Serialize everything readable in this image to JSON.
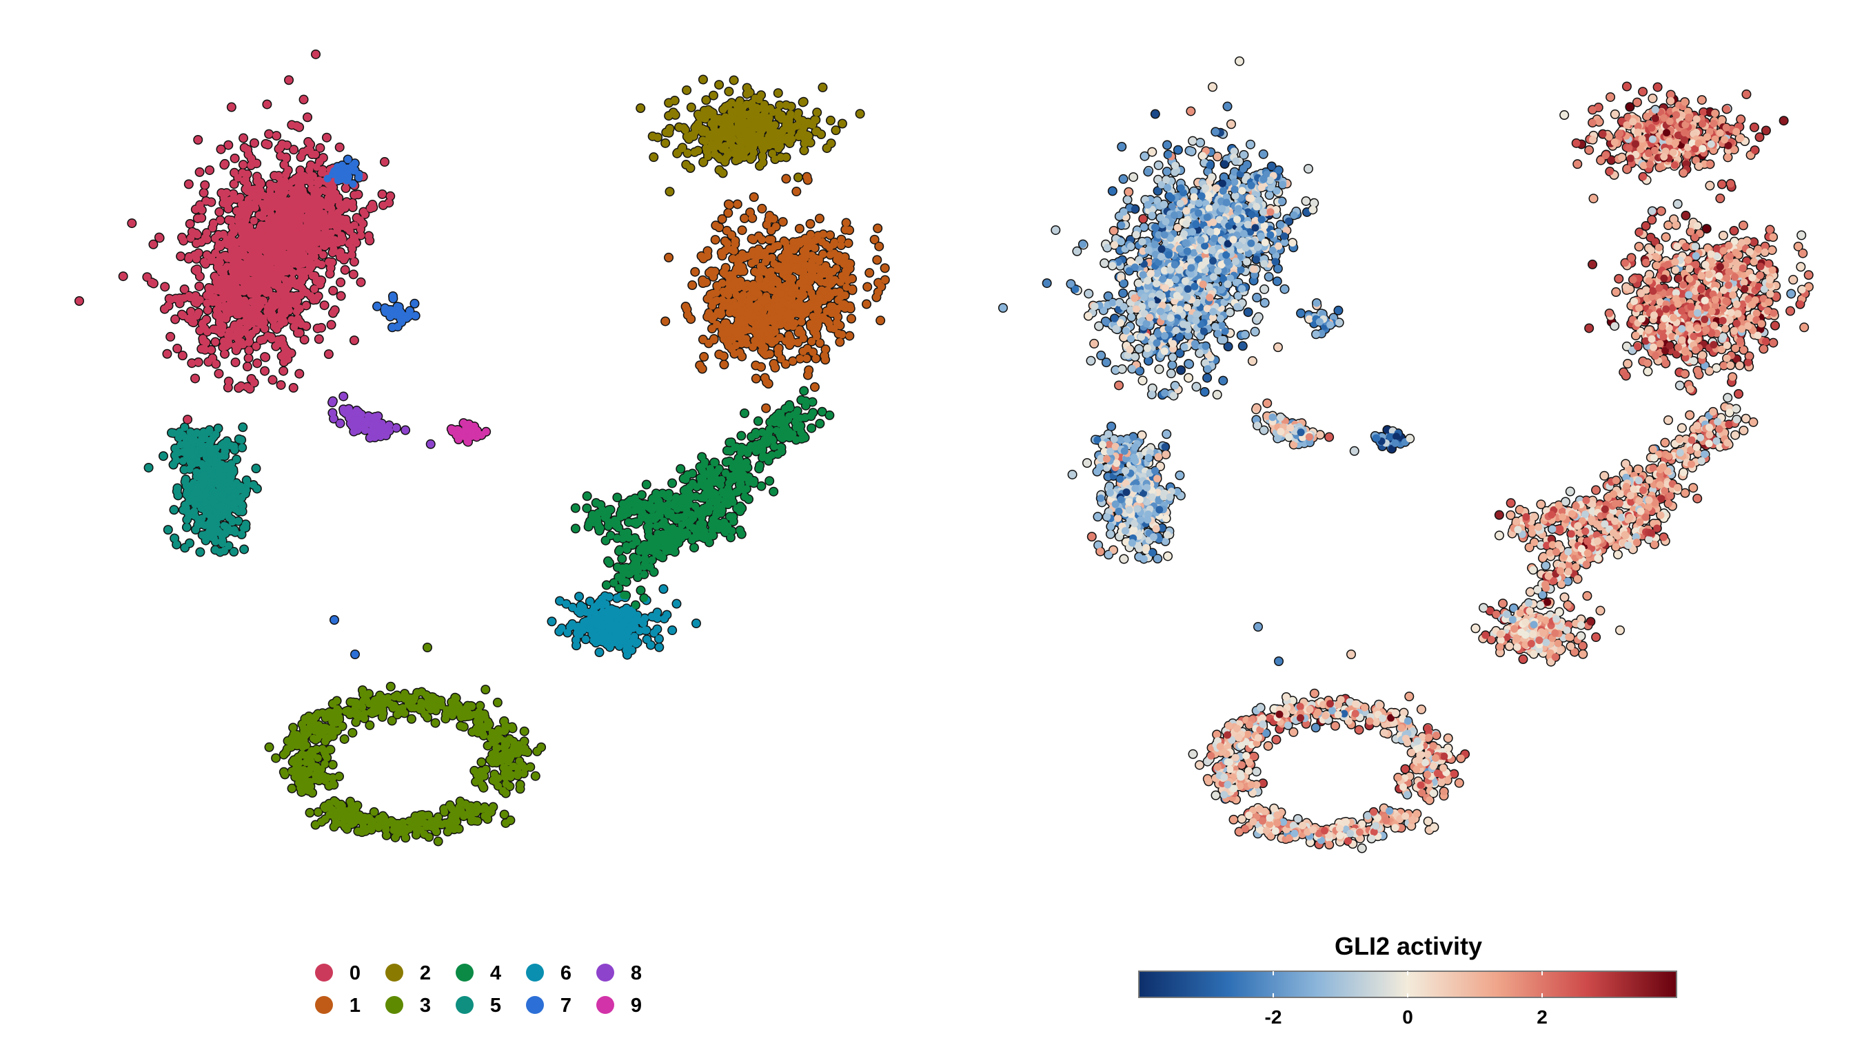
{
  "chart_data": [
    {
      "type": "scatter",
      "panel": "cluster-umap",
      "title": "",
      "xlabel": "",
      "ylabel": "",
      "legend": {
        "placement": "bottom",
        "entries": [
          {
            "label": "0",
            "color": "#CC3A5B"
          },
          {
            "label": "1",
            "color": "#BF5B17"
          },
          {
            "label": "2",
            "color": "#8A7A00"
          },
          {
            "label": "3",
            "color": "#5E8A00"
          },
          {
            "label": "4",
            "color": "#0B8A45"
          },
          {
            "label": "5",
            "color": "#0E8F80"
          },
          {
            "label": "6",
            "color": "#0A8FB0"
          },
          {
            "label": "7",
            "color": "#2C6FD6"
          },
          {
            "label": "8",
            "color": "#8E43CC"
          },
          {
            "label": "9",
            "color": "#D233A8"
          }
        ]
      },
      "axes_visible": false,
      "grid": false
    },
    {
      "type": "scatter",
      "panel": "gli2-activity-umap",
      "title": "",
      "colorbar": {
        "title": "GLI2 activity",
        "placement": "bottom",
        "range": [
          -4,
          4
        ],
        "ticks": [
          "-2",
          "0",
          "2"
        ],
        "tick_values": [
          -2,
          0,
          2
        ],
        "colors": [
          "#0D2F6B",
          "#2E6FB5",
          "#8DB6DA",
          "#F3EBDB",
          "#EFA58A",
          "#CE4A4A",
          "#67000D"
        ]
      },
      "axes_visible": false,
      "grid": false
    }
  ]
}
